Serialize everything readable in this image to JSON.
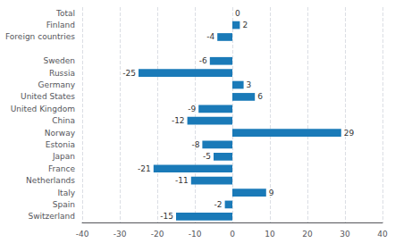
{
  "chart_data": {
    "type": "bar",
    "orientation": "horizontal",
    "categories": [
      "Total",
      "Finland",
      "Foreign countries",
      null,
      "Sweden",
      "Russia",
      "Germany",
      "United States",
      "United Kingdom",
      "China",
      "Norway",
      "Estonia",
      "Japan",
      "France",
      "Netherlands",
      "Italy",
      "Spain",
      "Switzerland"
    ],
    "values": [
      0,
      2,
      -4,
      null,
      -6,
      -25,
      3,
      6,
      -9,
      -12,
      29,
      -8,
      -5,
      -21,
      -11,
      9,
      -2,
      -15
    ],
    "color": "#1a7ab8",
    "xlim": [
      -40,
      40
    ],
    "xticks": [
      -40,
      -30,
      -20,
      -10,
      0,
      10,
      20,
      30,
      40
    ],
    "grid": true,
    "data_labels": true
  }
}
